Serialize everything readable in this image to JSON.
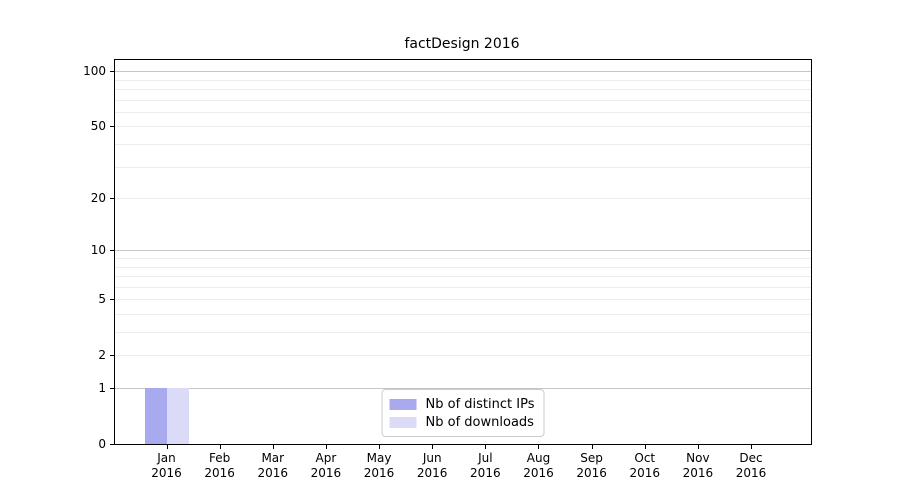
{
  "chart_data": {
    "type": "bar",
    "title": "factDesign 2016",
    "categories": [
      {
        "month": "Jan",
        "year": "2016"
      },
      {
        "month": "Feb",
        "year": "2016"
      },
      {
        "month": "Mar",
        "year": "2016"
      },
      {
        "month": "Apr",
        "year": "2016"
      },
      {
        "month": "May",
        "year": "2016"
      },
      {
        "month": "Jun",
        "year": "2016"
      },
      {
        "month": "Jul",
        "year": "2016"
      },
      {
        "month": "Aug",
        "year": "2016"
      },
      {
        "month": "Sep",
        "year": "2016"
      },
      {
        "month": "Oct",
        "year": "2016"
      },
      {
        "month": "Nov",
        "year": "2016"
      },
      {
        "month": "Dec",
        "year": "2016"
      }
    ],
    "series": [
      {
        "name": "Nb of distinct IPs",
        "color": "#a9a9f0",
        "values": [
          1,
          0,
          0,
          0,
          0,
          0,
          0,
          0,
          0,
          0,
          0,
          0
        ]
      },
      {
        "name": "Nb of downloads",
        "color": "#dbdbf8",
        "values": [
          1,
          0,
          0,
          0,
          0,
          0,
          0,
          0,
          0,
          0,
          0,
          0
        ]
      }
    ],
    "xlabel": "",
    "ylabel": "",
    "y_axis": {
      "scale": "log1p",
      "ticks": [
        0,
        1,
        2,
        5,
        10,
        20,
        50,
        100
      ],
      "max": 115,
      "major_gridlines": [
        1,
        10,
        100
      ],
      "minor_gridlines": [
        2,
        3,
        4,
        5,
        6,
        7,
        8,
        9,
        20,
        30,
        40,
        50,
        60,
        70,
        80,
        90
      ]
    },
    "legend": {
      "position": "lower center",
      "entries": [
        "Nb of distinct IPs",
        "Nb of downloads"
      ]
    },
    "grid": "horizontal"
  }
}
